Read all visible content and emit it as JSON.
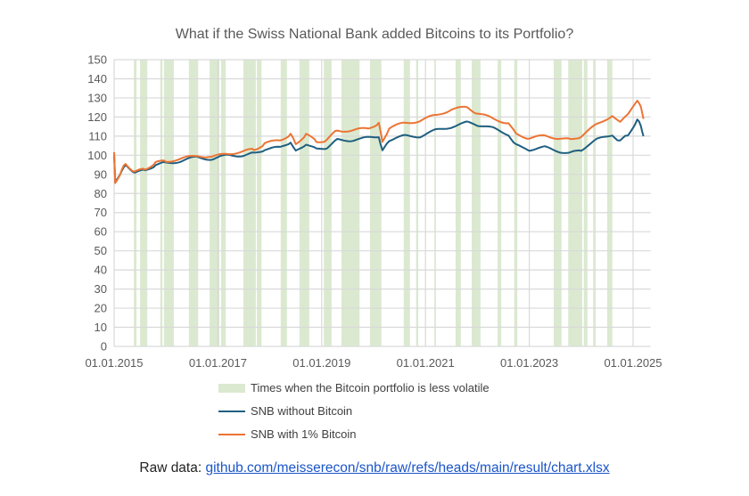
{
  "chart_data": {
    "type": "line",
    "title": "What if the Swiss National Bank added Bitcoins to its Portfolio?",
    "xlabel": "",
    "ylabel": "",
    "ylim": [
      0,
      150
    ],
    "yticks": [
      0,
      10,
      20,
      30,
      40,
      50,
      60,
      70,
      80,
      90,
      100,
      110,
      120,
      130,
      140,
      150
    ],
    "xlim": [
      2015.0,
      2025.2
    ],
    "xticks": [
      {
        "v": 2015,
        "label": "01.01.2015"
      },
      {
        "v": 2017,
        "label": "01.01.2017"
      },
      {
        "v": 2019,
        "label": "01.01.2019"
      },
      {
        "v": 2021,
        "label": "01.01.2021"
      },
      {
        "v": 2023,
        "label": "01.01.2023"
      },
      {
        "v": 2025,
        "label": "01.01.2025"
      }
    ],
    "grid": true,
    "legend_placement": "bottom",
    "bands": {
      "name": "Times when the Bitcoin portfolio is less volatile",
      "color": "#dbe9d0",
      "intervals": [
        [
          2015.38,
          2015.43
        ],
        [
          2015.5,
          2015.64
        ],
        [
          2015.89,
          2015.93
        ],
        [
          2015.96,
          2016.15
        ],
        [
          2016.44,
          2016.62
        ],
        [
          2016.84,
          2017.03
        ],
        [
          2017.06,
          2017.15
        ],
        [
          2017.49,
          2017.73
        ],
        [
          2017.75,
          2017.84
        ],
        [
          2018.21,
          2018.33
        ],
        [
          2018.57,
          2018.76
        ],
        [
          2019.04,
          2019.19
        ],
        [
          2019.38,
          2019.73
        ],
        [
          2019.93,
          2020.15
        ],
        [
          2020.58,
          2020.7
        ],
        [
          2020.82,
          2020.86
        ],
        [
          2021.17,
          2021.2
        ],
        [
          2021.58,
          2021.68
        ],
        [
          2021.89,
          2022.06
        ],
        [
          2022.39,
          2022.46
        ],
        [
          2022.71,
          2022.77
        ],
        [
          2023.47,
          2023.62
        ],
        [
          2023.75,
          2024.02
        ],
        [
          2024.05,
          2024.12
        ],
        [
          2024.23,
          2024.28
        ],
        [
          2024.5,
          2024.6
        ]
      ]
    },
    "series": [
      {
        "name": "SNB without Bitcoin",
        "color": "#1f5f80",
        "x": [
          2015.0,
          2015.02,
          2015.15,
          2015.22,
          2015.4,
          2015.6,
          2015.8,
          2016.0,
          2016.3,
          2016.6,
          2016.9,
          2017.2,
          2017.5,
          2017.7,
          2017.9,
          2018.2,
          2018.4,
          2018.5,
          2018.7,
          2018.9,
          2019.1,
          2019.3,
          2019.6,
          2019.9,
          2020.1,
          2020.17,
          2020.3,
          2020.6,
          2020.9,
          2021.2,
          2021.5,
          2021.8,
          2022.0,
          2022.3,
          2022.6,
          2022.75,
          2023.0,
          2023.3,
          2023.6,
          2023.8,
          2024.0,
          2024.3,
          2024.6,
          2024.75,
          2024.9,
          2025.08,
          2025.15,
          2025.2
        ],
        "y": [
          100,
          86,
          92,
          95,
          91,
          92,
          95,
          96,
          97,
          99,
          98,
          100,
          100,
          101,
          103,
          104,
          107,
          102,
          106,
          103,
          104,
          108,
          108,
          109,
          110,
          102,
          108,
          110,
          110,
          113,
          115,
          117,
          116,
          114,
          111,
          105,
          103,
          104,
          102,
          101,
          103,
          108,
          111,
          107,
          111,
          118,
          116,
          110
        ]
      },
      {
        "name": "SNB with 1% Bitcoin",
        "color": "#ec7434",
        "x": [
          2015.0,
          2015.02,
          2015.15,
          2015.22,
          2015.4,
          2015.6,
          2015.8,
          2016.0,
          2016.3,
          2016.6,
          2016.9,
          2017.2,
          2017.5,
          2017.7,
          2017.9,
          2018.2,
          2018.4,
          2018.5,
          2018.7,
          2018.9,
          2019.1,
          2019.3,
          2019.6,
          2019.9,
          2020.1,
          2020.17,
          2020.3,
          2020.6,
          2020.9,
          2021.2,
          2021.5,
          2021.8,
          2022.0,
          2022.3,
          2022.6,
          2022.75,
          2023.0,
          2023.3,
          2023.6,
          2023.8,
          2024.0,
          2024.3,
          2024.6,
          2024.75,
          2024.9,
          2025.08,
          2025.15,
          2025.2
        ],
        "y": [
          101,
          86,
          92,
          96,
          91,
          93,
          96,
          97,
          98,
          100,
          99,
          101,
          102,
          103,
          106,
          108,
          111,
          106,
          111,
          107,
          108,
          113,
          113,
          114,
          117,
          107,
          114,
          117,
          118,
          121,
          124,
          125,
          122,
          119,
          117,
          111,
          109,
          110,
          109,
          108,
          110,
          116,
          121,
          117,
          122,
          128,
          126,
          119
        ]
      }
    ]
  },
  "footer": {
    "prefix": "Raw data: ",
    "link": "github.com/meisserecon/snb/raw/refs/heads/main/result/chart.xlsx"
  }
}
